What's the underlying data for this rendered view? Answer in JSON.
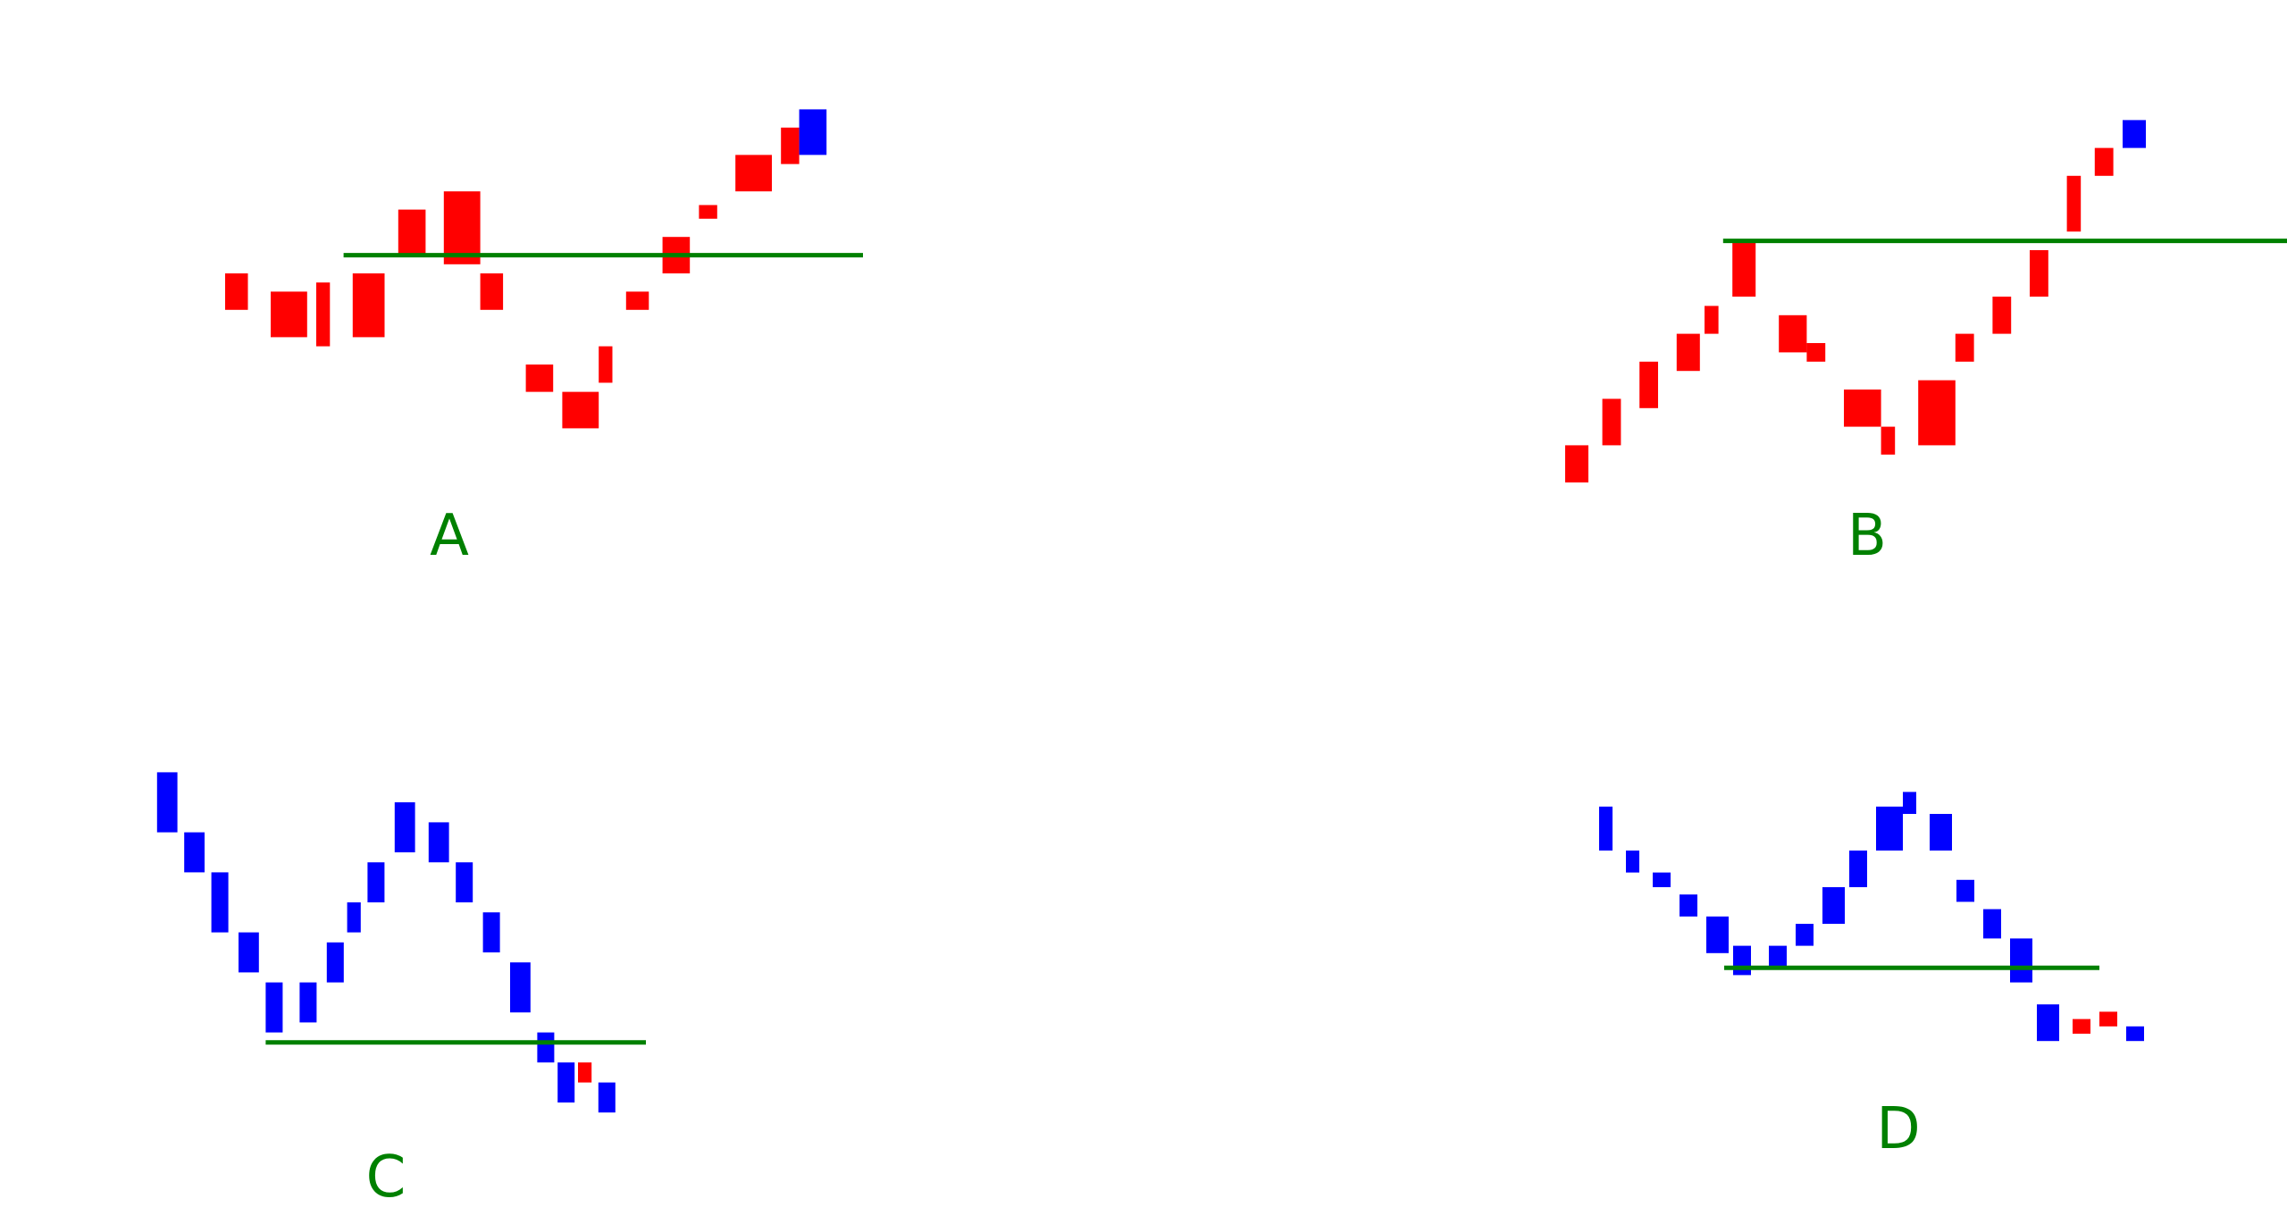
{
  "colors": {
    "up_bar": "#ff0000",
    "down_bar": "#0000ff",
    "level_line": "#008000",
    "label": "#008000",
    "background": "#ffffff"
  },
  "panels": [
    {
      "id": "a",
      "label": "A",
      "bars": [
        {
          "color": "up",
          "x": 10,
          "w": 2.5,
          "y1": 20,
          "y2": 16
        },
        {
          "color": "up",
          "x": 15,
          "w": 4,
          "y1": 13,
          "y2": 18
        },
        {
          "color": "up",
          "x": 20,
          "w": 1.5,
          "y1": 19,
          "y2": 12
        },
        {
          "color": "up",
          "x": 24,
          "w": 3.5,
          "y1": 13,
          "y2": 20
        },
        {
          "color": "up",
          "x": 29,
          "w": 3,
          "y1": 22,
          "y2": 27
        },
        {
          "color": "up",
          "x": 34,
          "w": 4,
          "y1": 21,
          "y2": 29
        },
        {
          "color": "up",
          "x": 38,
          "w": 2.5,
          "y1": 16,
          "y2": 20
        },
        {
          "color": "up",
          "x": 43,
          "w": 3,
          "y1": 7,
          "y2": 10
        },
        {
          "color": "up",
          "x": 47,
          "w": 4,
          "y1": 3,
          "y2": 7
        },
        {
          "color": "up",
          "x": 51,
          "w": 1.5,
          "y1": 12,
          "y2": 8
        },
        {
          "color": "up",
          "x": 54,
          "w": 2.5,
          "y1": 16,
          "y2": 18
        },
        {
          "color": "up",
          "x": 58,
          "w": 3,
          "y1": 20,
          "y2": 24
        },
        {
          "color": "up",
          "x": 62,
          "w": 2,
          "y1": 26,
          "y2": 27.5
        },
        {
          "color": "up",
          "x": 66,
          "w": 4,
          "y1": 29,
          "y2": 33
        },
        {
          "color": "up",
          "x": 71,
          "w": 2,
          "y1": 32,
          "y2": 36
        },
        {
          "color": "down",
          "x": 73,
          "w": 3,
          "y1": 33,
          "y2": 38
        }
      ],
      "level": {
        "x_start": 23,
        "x_end": 80,
        "y": 22
      }
    },
    {
      "id": "b",
      "label": "B",
      "bars": [
        {
          "color": "up",
          "x": 5,
          "w": 2.5,
          "y1": 0,
          "y2": 4
        },
        {
          "color": "up",
          "x": 9,
          "w": 2,
          "y1": 4,
          "y2": 9
        },
        {
          "color": "up",
          "x": 13,
          "w": 2,
          "y1": 8,
          "y2": 13
        },
        {
          "color": "up",
          "x": 17,
          "w": 2.5,
          "y1": 12,
          "y2": 16
        },
        {
          "color": "up",
          "x": 20,
          "w": 1.5,
          "y1": 16,
          "y2": 19
        },
        {
          "color": "up",
          "x": 23,
          "w": 2.5,
          "y1": 20,
          "y2": 26
        },
        {
          "color": "up",
          "x": 28,
          "w": 3,
          "y1": 14,
          "y2": 18
        },
        {
          "color": "up",
          "x": 31,
          "w": 2,
          "y1": 13,
          "y2": 15
        },
        {
          "color": "up",
          "x": 35,
          "w": 4,
          "y1": 6,
          "y2": 10
        },
        {
          "color": "up",
          "x": 39,
          "w": 1.5,
          "y1": 3,
          "y2": 6
        },
        {
          "color": "up",
          "x": 43,
          "w": 4,
          "y1": 4,
          "y2": 11
        },
        {
          "color": "up",
          "x": 47,
          "w": 2,
          "y1": 13,
          "y2": 16
        },
        {
          "color": "up",
          "x": 51,
          "w": 2,
          "y1": 16,
          "y2": 20
        },
        {
          "color": "up",
          "x": 55,
          "w": 2,
          "y1": 20,
          "y2": 25
        },
        {
          "color": "up",
          "x": 59,
          "w": 1.5,
          "y1": 27,
          "y2": 33
        },
        {
          "color": "up",
          "x": 62,
          "w": 2,
          "y1": 33,
          "y2": 36
        },
        {
          "color": "down",
          "x": 65,
          "w": 2.5,
          "y1": 36,
          "y2": 39
        }
      ],
      "level": {
        "x_start": 22,
        "x_end": 86,
        "y": 26
      }
    },
    {
      "id": "c",
      "label": "C",
      "bars": [
        {
          "color": "down",
          "x": 8,
          "w": 3,
          "y1": 32,
          "y2": 38
        },
        {
          "color": "down",
          "x": 12,
          "w": 3,
          "y1": 28,
          "y2": 32
        },
        {
          "color": "down",
          "x": 16,
          "w": 2.5,
          "y1": 22,
          "y2": 28
        },
        {
          "color": "down",
          "x": 20,
          "w": 3,
          "y1": 18,
          "y2": 22
        },
        {
          "color": "down",
          "x": 24,
          "w": 2.5,
          "y1": 12,
          "y2": 17
        },
        {
          "color": "down",
          "x": 29,
          "w": 2.5,
          "y1": 13,
          "y2": 17
        },
        {
          "color": "down",
          "x": 33,
          "w": 2.5,
          "y1": 17,
          "y2": 21
        },
        {
          "color": "down",
          "x": 36,
          "w": 2,
          "y1": 22,
          "y2": 25
        },
        {
          "color": "down",
          "x": 39,
          "w": 2.5,
          "y1": 25,
          "y2": 29
        },
        {
          "color": "down",
          "x": 43,
          "w": 3,
          "y1": 30,
          "y2": 35
        },
        {
          "color": "down",
          "x": 48,
          "w": 3,
          "y1": 29,
          "y2": 33
        },
        {
          "color": "down",
          "x": 52,
          "w": 2.5,
          "y1": 25,
          "y2": 29
        },
        {
          "color": "down",
          "x": 56,
          "w": 2.5,
          "y1": 20,
          "y2": 24
        },
        {
          "color": "down",
          "x": 60,
          "w": 3,
          "y1": 14,
          "y2": 19
        },
        {
          "color": "down",
          "x": 64,
          "w": 2.5,
          "y1": 9,
          "y2": 12
        },
        {
          "color": "down",
          "x": 67,
          "w": 2.5,
          "y1": 5,
          "y2": 9
        },
        {
          "color": "up",
          "x": 70,
          "w": 2,
          "y1": 7,
          "y2": 9
        },
        {
          "color": "down",
          "x": 73,
          "w": 2.5,
          "y1": 4,
          "y2": 7
        }
      ],
      "level": {
        "x_start": 24,
        "x_end": 80,
        "y": 11
      }
    },
    {
      "id": "d",
      "label": "D",
      "bars": [
        {
          "color": "down",
          "x": 6,
          "w": 1.5,
          "y1": 40,
          "y2": 46
        },
        {
          "color": "down",
          "x": 9,
          "w": 1.5,
          "y1": 37,
          "y2": 40
        },
        {
          "color": "down",
          "x": 12,
          "w": 2,
          "y1": 35,
          "y2": 37
        },
        {
          "color": "down",
          "x": 15,
          "w": 2,
          "y1": 31,
          "y2": 34
        },
        {
          "color": "down",
          "x": 18,
          "w": 2.5,
          "y1": 26,
          "y2": 31
        },
        {
          "color": "down",
          "x": 21,
          "w": 2,
          "y1": 23,
          "y2": 27
        },
        {
          "color": "down",
          "x": 25,
          "w": 2,
          "y1": 24,
          "y2": 27
        },
        {
          "color": "down",
          "x": 28,
          "w": 2,
          "y1": 27,
          "y2": 30
        },
        {
          "color": "down",
          "x": 31,
          "w": 2.5,
          "y1": 30,
          "y2": 35
        },
        {
          "color": "down",
          "x": 34,
          "w": 2,
          "y1": 35,
          "y2": 40
        },
        {
          "color": "down",
          "x": 37,
          "w": 3,
          "y1": 40,
          "y2": 46
        },
        {
          "color": "down",
          "x": 40,
          "w": 1.5,
          "y1": 45,
          "y2": 48
        },
        {
          "color": "down",
          "x": 43,
          "w": 2.5,
          "y1": 40,
          "y2": 45
        },
        {
          "color": "down",
          "x": 46,
          "w": 2,
          "y1": 33,
          "y2": 36
        },
        {
          "color": "down",
          "x": 49,
          "w": 2,
          "y1": 28,
          "y2": 32
        },
        {
          "color": "down",
          "x": 52,
          "w": 2.5,
          "y1": 22,
          "y2": 28
        },
        {
          "color": "down",
          "x": 55,
          "w": 2.5,
          "y1": 14,
          "y2": 19
        },
        {
          "color": "up",
          "x": 59,
          "w": 2,
          "y1": 15,
          "y2": 17
        },
        {
          "color": "up",
          "x": 62,
          "w": 2,
          "y1": 16,
          "y2": 18
        },
        {
          "color": "down",
          "x": 65,
          "w": 2,
          "y1": 14,
          "y2": 16
        }
      ],
      "level": {
        "x_start": 20,
        "x_end": 62,
        "y": 24
      }
    }
  ]
}
